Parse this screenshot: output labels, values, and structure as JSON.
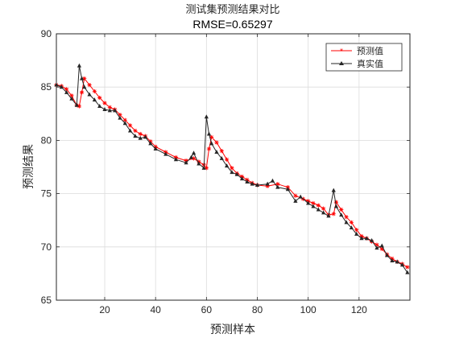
{
  "chart_data": {
    "type": "line",
    "title": "测试集预测结果对比",
    "subtitle": "RMSE=0.65297",
    "xlabel": "预测样本",
    "ylabel": "预测结果",
    "xlim": [
      1,
      140
    ],
    "ylim": [
      65,
      90
    ],
    "xticks": [
      20,
      40,
      60,
      80,
      100,
      120
    ],
    "yticks": [
      65,
      70,
      75,
      80,
      85,
      90
    ],
    "grid": true,
    "legend_position": "top-right",
    "series": [
      {
        "name": "预测值",
        "color": "#ff0000",
        "marker": "star",
        "points": [
          [
            1,
            85.2
          ],
          [
            3,
            85.1
          ],
          [
            5,
            84.8
          ],
          [
            7,
            84.2
          ],
          [
            9,
            83.3
          ],
          [
            10,
            83.2
          ],
          [
            11,
            84.5
          ],
          [
            12,
            85.8
          ],
          [
            14,
            85.2
          ],
          [
            16,
            84.6
          ],
          [
            18,
            84.0
          ],
          [
            20,
            83.5
          ],
          [
            22,
            83.1
          ],
          [
            24,
            82.9
          ],
          [
            26,
            82.4
          ],
          [
            28,
            81.9
          ],
          [
            30,
            81.4
          ],
          [
            32,
            80.9
          ],
          [
            34,
            80.6
          ],
          [
            36,
            80.4
          ],
          [
            38,
            79.9
          ],
          [
            40,
            79.4
          ],
          [
            44,
            78.9
          ],
          [
            48,
            78.4
          ],
          [
            52,
            78.1
          ],
          [
            55,
            78.3
          ],
          [
            57,
            78.0
          ],
          [
            59,
            77.7
          ],
          [
            60,
            77.4
          ],
          [
            61,
            79.2
          ],
          [
            62,
            80.3
          ],
          [
            64,
            79.8
          ],
          [
            66,
            79.0
          ],
          [
            68,
            78.2
          ],
          [
            70,
            77.4
          ],
          [
            72,
            76.9
          ],
          [
            74,
            76.6
          ],
          [
            76,
            76.3
          ],
          [
            78,
            76.0
          ],
          [
            80,
            75.8
          ],
          [
            84,
            75.7
          ],
          [
            88,
            75.9
          ],
          [
            92,
            75.6
          ],
          [
            95,
            74.8
          ],
          [
            98,
            74.5
          ],
          [
            100,
            74.3
          ],
          [
            102,
            74.1
          ],
          [
            104,
            73.9
          ],
          [
            106,
            73.6
          ],
          [
            108,
            73.0
          ],
          [
            110,
            73.1
          ],
          [
            111,
            74.2
          ],
          [
            113,
            73.5
          ],
          [
            115,
            72.8
          ],
          [
            117,
            72.3
          ],
          [
            119,
            71.6
          ],
          [
            121,
            71.0
          ],
          [
            123,
            70.8
          ],
          [
            125,
            70.5
          ],
          [
            127,
            70.2
          ],
          [
            129,
            69.8
          ],
          [
            131,
            69.3
          ],
          [
            133,
            68.9
          ],
          [
            135,
            68.6
          ],
          [
            137,
            68.4
          ],
          [
            139,
            68.1
          ]
        ]
      },
      {
        "name": "真实值",
        "color": "#262626",
        "marker": "triangle",
        "points": [
          [
            1,
            85.2
          ],
          [
            3,
            85.0
          ],
          [
            5,
            84.5
          ],
          [
            7,
            83.9
          ],
          [
            9,
            83.3
          ],
          [
            10,
            87.0
          ],
          [
            11,
            85.8
          ],
          [
            12,
            85.0
          ],
          [
            14,
            84.3
          ],
          [
            16,
            83.8
          ],
          [
            18,
            83.2
          ],
          [
            20,
            82.9
          ],
          [
            22,
            82.8
          ],
          [
            24,
            82.8
          ],
          [
            26,
            82.1
          ],
          [
            28,
            81.6
          ],
          [
            30,
            80.9
          ],
          [
            32,
            80.4
          ],
          [
            34,
            80.2
          ],
          [
            36,
            80.3
          ],
          [
            38,
            79.7
          ],
          [
            40,
            79.2
          ],
          [
            44,
            78.7
          ],
          [
            48,
            78.2
          ],
          [
            52,
            77.9
          ],
          [
            54,
            78.4
          ],
          [
            55,
            78.8
          ],
          [
            57,
            77.8
          ],
          [
            59,
            77.4
          ],
          [
            60,
            82.2
          ],
          [
            61,
            80.6
          ],
          [
            62,
            79.7
          ],
          [
            64,
            78.9
          ],
          [
            66,
            78.3
          ],
          [
            68,
            77.6
          ],
          [
            70,
            77.0
          ],
          [
            72,
            76.8
          ],
          [
            74,
            76.4
          ],
          [
            76,
            76.1
          ],
          [
            78,
            75.9
          ],
          [
            80,
            75.8
          ],
          [
            84,
            75.9
          ],
          [
            86,
            76.2
          ],
          [
            88,
            75.6
          ],
          [
            92,
            75.4
          ],
          [
            95,
            74.3
          ],
          [
            97,
            74.7
          ],
          [
            100,
            74.1
          ],
          [
            102,
            73.8
          ],
          [
            104,
            73.5
          ],
          [
            106,
            73.2
          ],
          [
            108,
            72.9
          ],
          [
            110,
            75.3
          ],
          [
            111,
            73.8
          ],
          [
            113,
            73.0
          ],
          [
            115,
            72.3
          ],
          [
            117,
            71.8
          ],
          [
            119,
            71.2
          ],
          [
            121,
            70.8
          ],
          [
            123,
            70.8
          ],
          [
            125,
            70.6
          ],
          [
            127,
            69.9
          ],
          [
            129,
            70.1
          ],
          [
            131,
            69.2
          ],
          [
            133,
            68.7
          ],
          [
            135,
            68.6
          ],
          [
            137,
            68.3
          ],
          [
            139,
            67.6
          ]
        ]
      }
    ]
  }
}
